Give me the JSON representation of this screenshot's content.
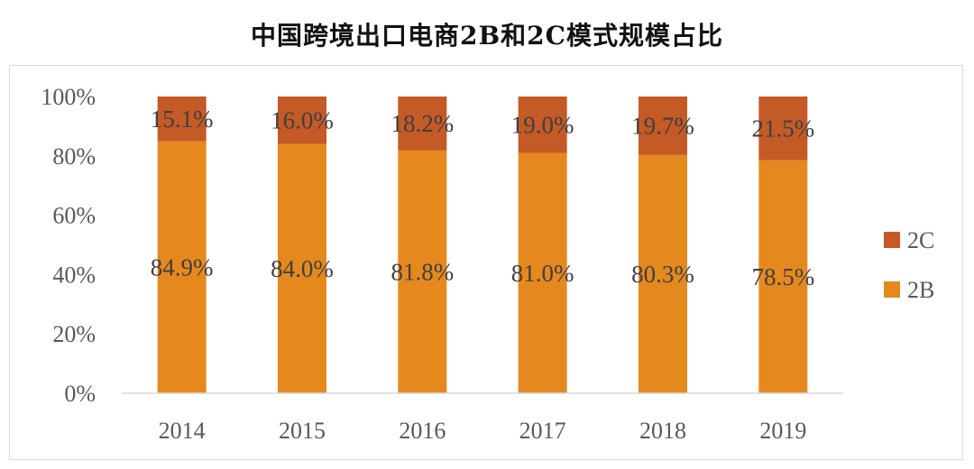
{
  "chart_data": {
    "type": "bar",
    "stacked": true,
    "title": "中国跨境出口电商2B和2C模式规模占比",
    "categories": [
      "2014",
      "2015",
      "2016",
      "2017",
      "2018",
      "2019"
    ],
    "series": [
      {
        "name": "2B",
        "values": [
          84.9,
          84.0,
          81.8,
          81.0,
          80.3,
          78.5
        ],
        "labels": [
          "84.9%",
          "84.0%",
          "81.8%",
          "81.0%",
          "80.3%",
          "78.5%"
        ],
        "color": "#E5891F"
      },
      {
        "name": "2C",
        "values": [
          15.1,
          16.0,
          18.2,
          19.0,
          19.7,
          21.5
        ],
        "labels": [
          "15.1%",
          "16.0%",
          "18.2%",
          "19.0%",
          "19.7%",
          "21.5%"
        ],
        "color": "#C45A26"
      }
    ],
    "yticks": [
      "0%",
      "20%",
      "40%",
      "60%",
      "80%",
      "100%"
    ],
    "ylim": [
      0,
      100
    ],
    "legend": "right",
    "grid": false
  }
}
